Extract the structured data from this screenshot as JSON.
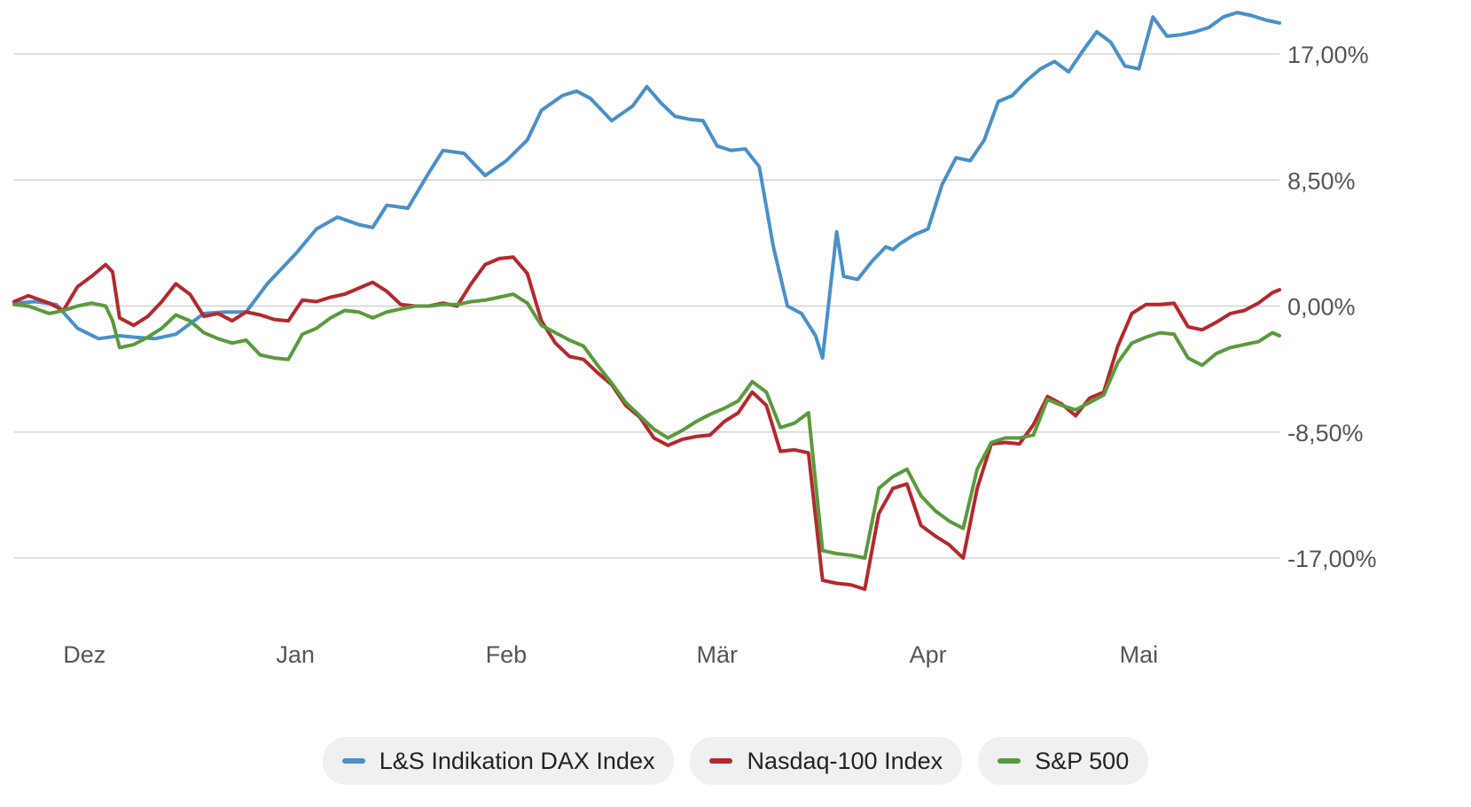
{
  "chart_data": {
    "type": "line",
    "title": "",
    "xlabel": "",
    "ylabel": "",
    "y_axis_side": "right",
    "ylim": [
      -21.5,
      20.0
    ],
    "y_ticks": [
      17.0,
      8.5,
      0.0,
      -8.5,
      -17.0
    ],
    "y_tick_labels": [
      "17,00%",
      "8,50%",
      "0,00%",
      "-8,50%",
      "-17,00%"
    ],
    "x_range": [
      0,
      180
    ],
    "x_ticks": [
      10,
      40,
      70,
      100,
      130,
      160
    ],
    "x_tick_labels": [
      "Dez",
      "Jan",
      "Feb",
      "Mär",
      "Apr",
      "Mai"
    ],
    "grid": true,
    "legend_position": "bottom",
    "series": [
      {
        "name": "L&S Indikation DAX Index",
        "color": "#4a90c8",
        "x": [
          0,
          3,
          6,
          9,
          12,
          15,
          17,
          20,
          23,
          27,
          30,
          33,
          36,
          40,
          43,
          46,
          49,
          51,
          53,
          56,
          59,
          61,
          64,
          67,
          70,
          73,
          75,
          78,
          80,
          82,
          85,
          88,
          90,
          92,
          94,
          96,
          98,
          100,
          102,
          104,
          106,
          108,
          110,
          112,
          114,
          115,
          117,
          118,
          120,
          122,
          124,
          125,
          126,
          127,
          128,
          130,
          132,
          134,
          136,
          138,
          140,
          142,
          144,
          146,
          148,
          150,
          152,
          154,
          156,
          158,
          160,
          162,
          164,
          166,
          168,
          170,
          172,
          174,
          176,
          178,
          180
        ],
        "y": [
          0.2,
          0.3,
          0.1,
          -1.5,
          -2.2,
          -2.0,
          -2.1,
          -2.2,
          -1.9,
          -0.5,
          -0.4,
          -0.4,
          1.5,
          3.5,
          5.2,
          6.0,
          5.5,
          5.3,
          6.8,
          6.6,
          9.0,
          10.5,
          10.3,
          8.8,
          9.8,
          11.2,
          13.2,
          14.2,
          14.5,
          14.0,
          12.5,
          13.5,
          14.8,
          13.7,
          12.8,
          12.6,
          12.5,
          10.8,
          10.5,
          10.6,
          9.4,
          4.0,
          0.0,
          -0.5,
          -2.0,
          -3.5,
          5.0,
          2.0,
          1.8,
          3.0,
          4.0,
          3.8,
          4.2,
          4.5,
          4.8,
          5.2,
          8.2,
          10.0,
          9.8,
          11.2,
          13.8,
          14.2,
          15.2,
          16.0,
          16.5,
          15.8,
          17.2,
          18.5,
          17.8,
          16.2,
          16.0,
          19.5,
          18.2,
          18.3,
          18.5,
          18.8,
          19.5,
          19.8,
          19.6,
          19.3,
          19.1
        ]
      },
      {
        "name": "Nasdaq-100 Index",
        "color": "#b3292e",
        "x": [
          0,
          2,
          5,
          7,
          9,
          11,
          13,
          14,
          15,
          17,
          19,
          21,
          23,
          25,
          27,
          29,
          31,
          33,
          35,
          37,
          39,
          41,
          43,
          45,
          47,
          49,
          51,
          53,
          55,
          57,
          59,
          61,
          63,
          65,
          67,
          69,
          71,
          73,
          75,
          77,
          79,
          81,
          83,
          85,
          87,
          89,
          91,
          93,
          95,
          97,
          99,
          101,
          103,
          105,
          107,
          109,
          111,
          113,
          115,
          117,
          119,
          121,
          123,
          125,
          127,
          129,
          131,
          133,
          135,
          137,
          139,
          141,
          143,
          145,
          147,
          149,
          151,
          153,
          155,
          157,
          159,
          161,
          163,
          165,
          167,
          169,
          171,
          173,
          175,
          177,
          179,
          180
        ],
        "y": [
          0.3,
          0.7,
          0.2,
          -0.3,
          1.3,
          2.0,
          2.8,
          2.3,
          -0.8,
          -1.3,
          -0.7,
          0.3,
          1.5,
          0.8,
          -0.7,
          -0.5,
          -1.0,
          -0.4,
          -0.6,
          -0.9,
          -1.0,
          0.4,
          0.3,
          0.6,
          0.8,
          1.2,
          1.6,
          1.0,
          0.1,
          0.0,
          0.0,
          0.2,
          0.0,
          1.5,
          2.8,
          3.2,
          3.3,
          2.2,
          -1.0,
          -2.5,
          -3.4,
          -3.6,
          -4.5,
          -5.3,
          -6.7,
          -7.5,
          -8.9,
          -9.4,
          -9.0,
          -8.8,
          -8.7,
          -7.8,
          -7.2,
          -5.8,
          -6.7,
          -9.8,
          -9.7,
          -9.9,
          -18.5,
          -18.7,
          -18.8,
          -19.1,
          -14.0,
          -12.3,
          -12.0,
          -14.8,
          -15.5,
          -16.1,
          -17.0,
          -12.3,
          -9.3,
          -9.2,
          -9.3,
          -8.0,
          -6.1,
          -6.6,
          -7.4,
          -6.2,
          -5.8,
          -2.7,
          -0.5,
          0.1,
          0.1,
          0.2,
          -1.4,
          -1.6,
          -1.1,
          -0.5,
          -0.3,
          0.2,
          0.9,
          1.1
        ]
      },
      {
        "name": "S&P 500",
        "color": "#5a9a3c",
        "x": [
          0,
          2,
          5,
          7,
          9,
          11,
          13,
          14,
          15,
          17,
          19,
          21,
          23,
          25,
          27,
          29,
          31,
          33,
          35,
          37,
          39,
          41,
          43,
          45,
          47,
          49,
          51,
          53,
          55,
          57,
          59,
          61,
          63,
          65,
          67,
          69,
          71,
          73,
          75,
          77,
          79,
          81,
          83,
          85,
          87,
          89,
          91,
          93,
          95,
          97,
          99,
          101,
          103,
          105,
          107,
          109,
          111,
          113,
          115,
          117,
          119,
          121,
          123,
          125,
          127,
          129,
          131,
          133,
          135,
          137,
          139,
          141,
          143,
          145,
          147,
          149,
          151,
          153,
          155,
          157,
          159,
          161,
          163,
          165,
          167,
          169,
          171,
          173,
          175,
          177,
          179,
          180
        ],
        "y": [
          0.1,
          0.0,
          -0.5,
          -0.3,
          0.0,
          0.2,
          0.0,
          -1.0,
          -2.8,
          -2.6,
          -2.1,
          -1.5,
          -0.6,
          -1.0,
          -1.8,
          -2.2,
          -2.5,
          -2.3,
          -3.3,
          -3.5,
          -3.6,
          -1.9,
          -1.5,
          -0.8,
          -0.3,
          -0.4,
          -0.8,
          -0.4,
          -0.2,
          0.0,
          0.0,
          0.1,
          0.1,
          0.3,
          0.4,
          0.6,
          0.8,
          0.2,
          -1.3,
          -1.8,
          -2.3,
          -2.7,
          -4.0,
          -5.2,
          -6.5,
          -7.4,
          -8.3,
          -8.9,
          -8.4,
          -7.8,
          -7.3,
          -6.9,
          -6.4,
          -5.1,
          -5.8,
          -8.2,
          -7.9,
          -7.2,
          -16.5,
          -16.7,
          -16.8,
          -17.0,
          -12.3,
          -11.5,
          -11.0,
          -12.8,
          -13.8,
          -14.5,
          -15.0,
          -11.0,
          -9.2,
          -8.9,
          -8.9,
          -8.7,
          -6.3,
          -6.7,
          -7.0,
          -6.5,
          -6.0,
          -3.8,
          -2.5,
          -2.1,
          -1.8,
          -1.9,
          -3.5,
          -4.0,
          -3.2,
          -2.8,
          -2.6,
          -2.4,
          -1.8,
          -2.0
        ]
      }
    ]
  }
}
